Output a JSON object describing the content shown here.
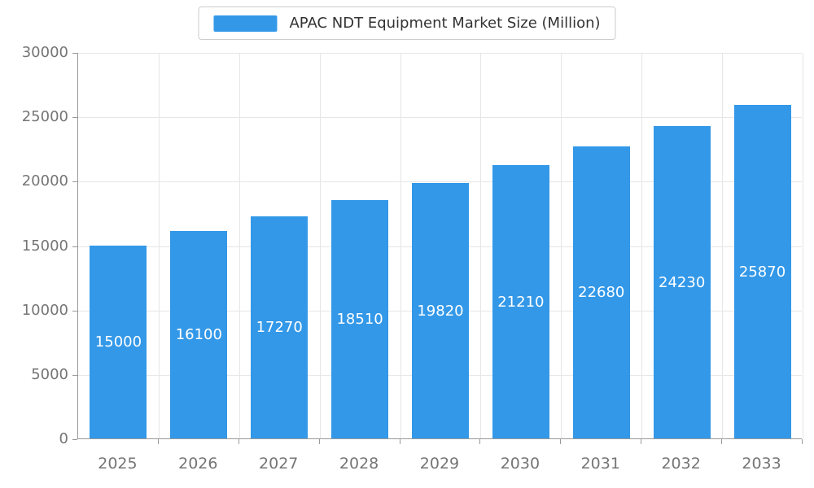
{
  "chart_data": {
    "type": "bar",
    "title": "APAC NDT Equipment Market Size (Million)",
    "categories": [
      "2025",
      "2026",
      "2027",
      "2028",
      "2029",
      "2030",
      "2031",
      "2032",
      "2033"
    ],
    "values": [
      15000,
      16100,
      17270,
      18510,
      19820,
      21210,
      22680,
      24230,
      25870
    ],
    "xlabel": "",
    "ylabel": "",
    "ylim": [
      0,
      30000
    ],
    "y_ticks": [
      0,
      5000,
      10000,
      15000,
      20000,
      25000,
      30000
    ],
    "grid": true,
    "legend_position": "top",
    "bar_labels_inside": true,
    "colors": {
      "bar": "#3398E8",
      "bar_label": "#FFFFFF",
      "grid_line": "#E6E6E6",
      "axis_line": "#999999",
      "tick_label": "#757575",
      "legend_text": "#333333",
      "legend_border": "#CCCCCC",
      "background": "#FFFFFF"
    }
  }
}
